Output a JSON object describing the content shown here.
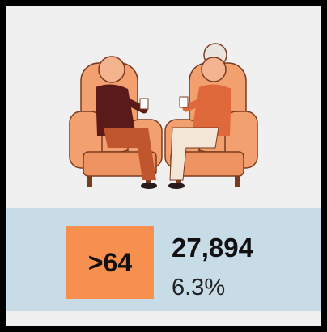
{
  "card": {
    "age_group": ">64",
    "count": "27,894",
    "share": "6.3%"
  }
}
